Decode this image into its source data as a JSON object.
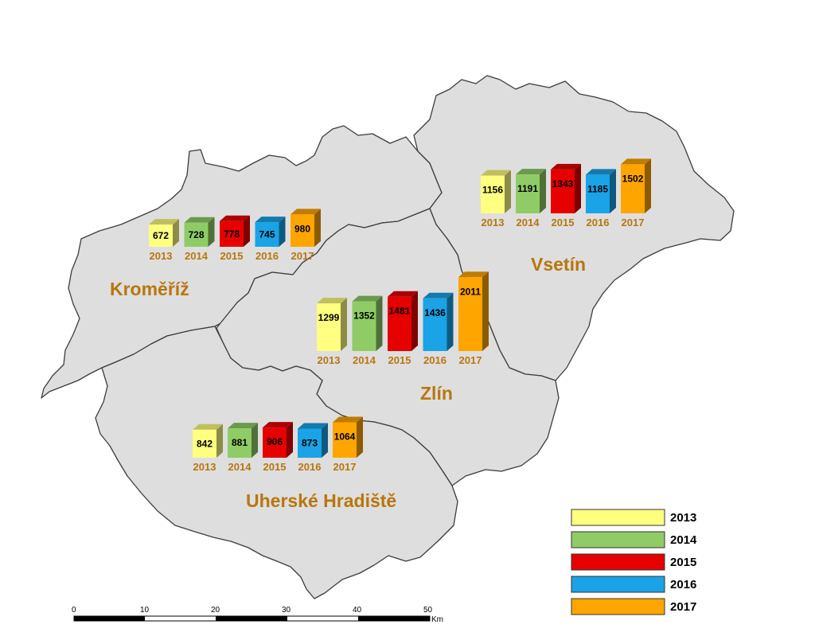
{
  "colors": {
    "2013": "#ffff80",
    "2014": "#8fcc66",
    "2015": "#e60000",
    "2016": "#1aa3e6",
    "2017": "#ffa500",
    "label": "#b8760c",
    "region_fill": "#dedede"
  },
  "regions": [
    {
      "id": "kromeriz",
      "name": "Kroměříž"
    },
    {
      "id": "vsetin",
      "name": "Vsetín"
    },
    {
      "id": "zlin",
      "name": "Zlín"
    },
    {
      "id": "uherske-hradiste",
      "name": "Uherské Hradiště"
    }
  ],
  "chart_data": [
    {
      "type": "bar",
      "region": "Kroměříž",
      "categories": [
        "2013",
        "2014",
        "2015",
        "2016",
        "2017"
      ],
      "values": [
        672,
        728,
        778,
        745,
        980
      ]
    },
    {
      "type": "bar",
      "region": "Vsetín",
      "categories": [
        "2013",
        "2014",
        "2015",
        "2016",
        "2017"
      ],
      "values": [
        1156,
        1191,
        1343,
        1185,
        1502
      ]
    },
    {
      "type": "bar",
      "region": "Zlín",
      "categories": [
        "2013",
        "2014",
        "2015",
        "2016",
        "2017"
      ],
      "values": [
        1299,
        1352,
        1481,
        1436,
        2011
      ]
    },
    {
      "type": "bar",
      "region": "Uherské Hradiště",
      "categories": [
        "2013",
        "2014",
        "2015",
        "2016",
        "2017"
      ],
      "values": [
        842,
        881,
        906,
        873,
        1064
      ]
    }
  ],
  "legend": {
    "items": [
      {
        "label": "2013",
        "color": "#ffff80"
      },
      {
        "label": "2014",
        "color": "#8fcc66"
      },
      {
        "label": "2015",
        "color": "#e60000"
      },
      {
        "label": "2016",
        "color": "#1aa3e6"
      },
      {
        "label": "2017",
        "color": "#ffa500"
      }
    ]
  },
  "scale_bar": {
    "ticks": [
      "0",
      "10",
      "20",
      "30",
      "40",
      "50"
    ],
    "unit": "Km"
  }
}
